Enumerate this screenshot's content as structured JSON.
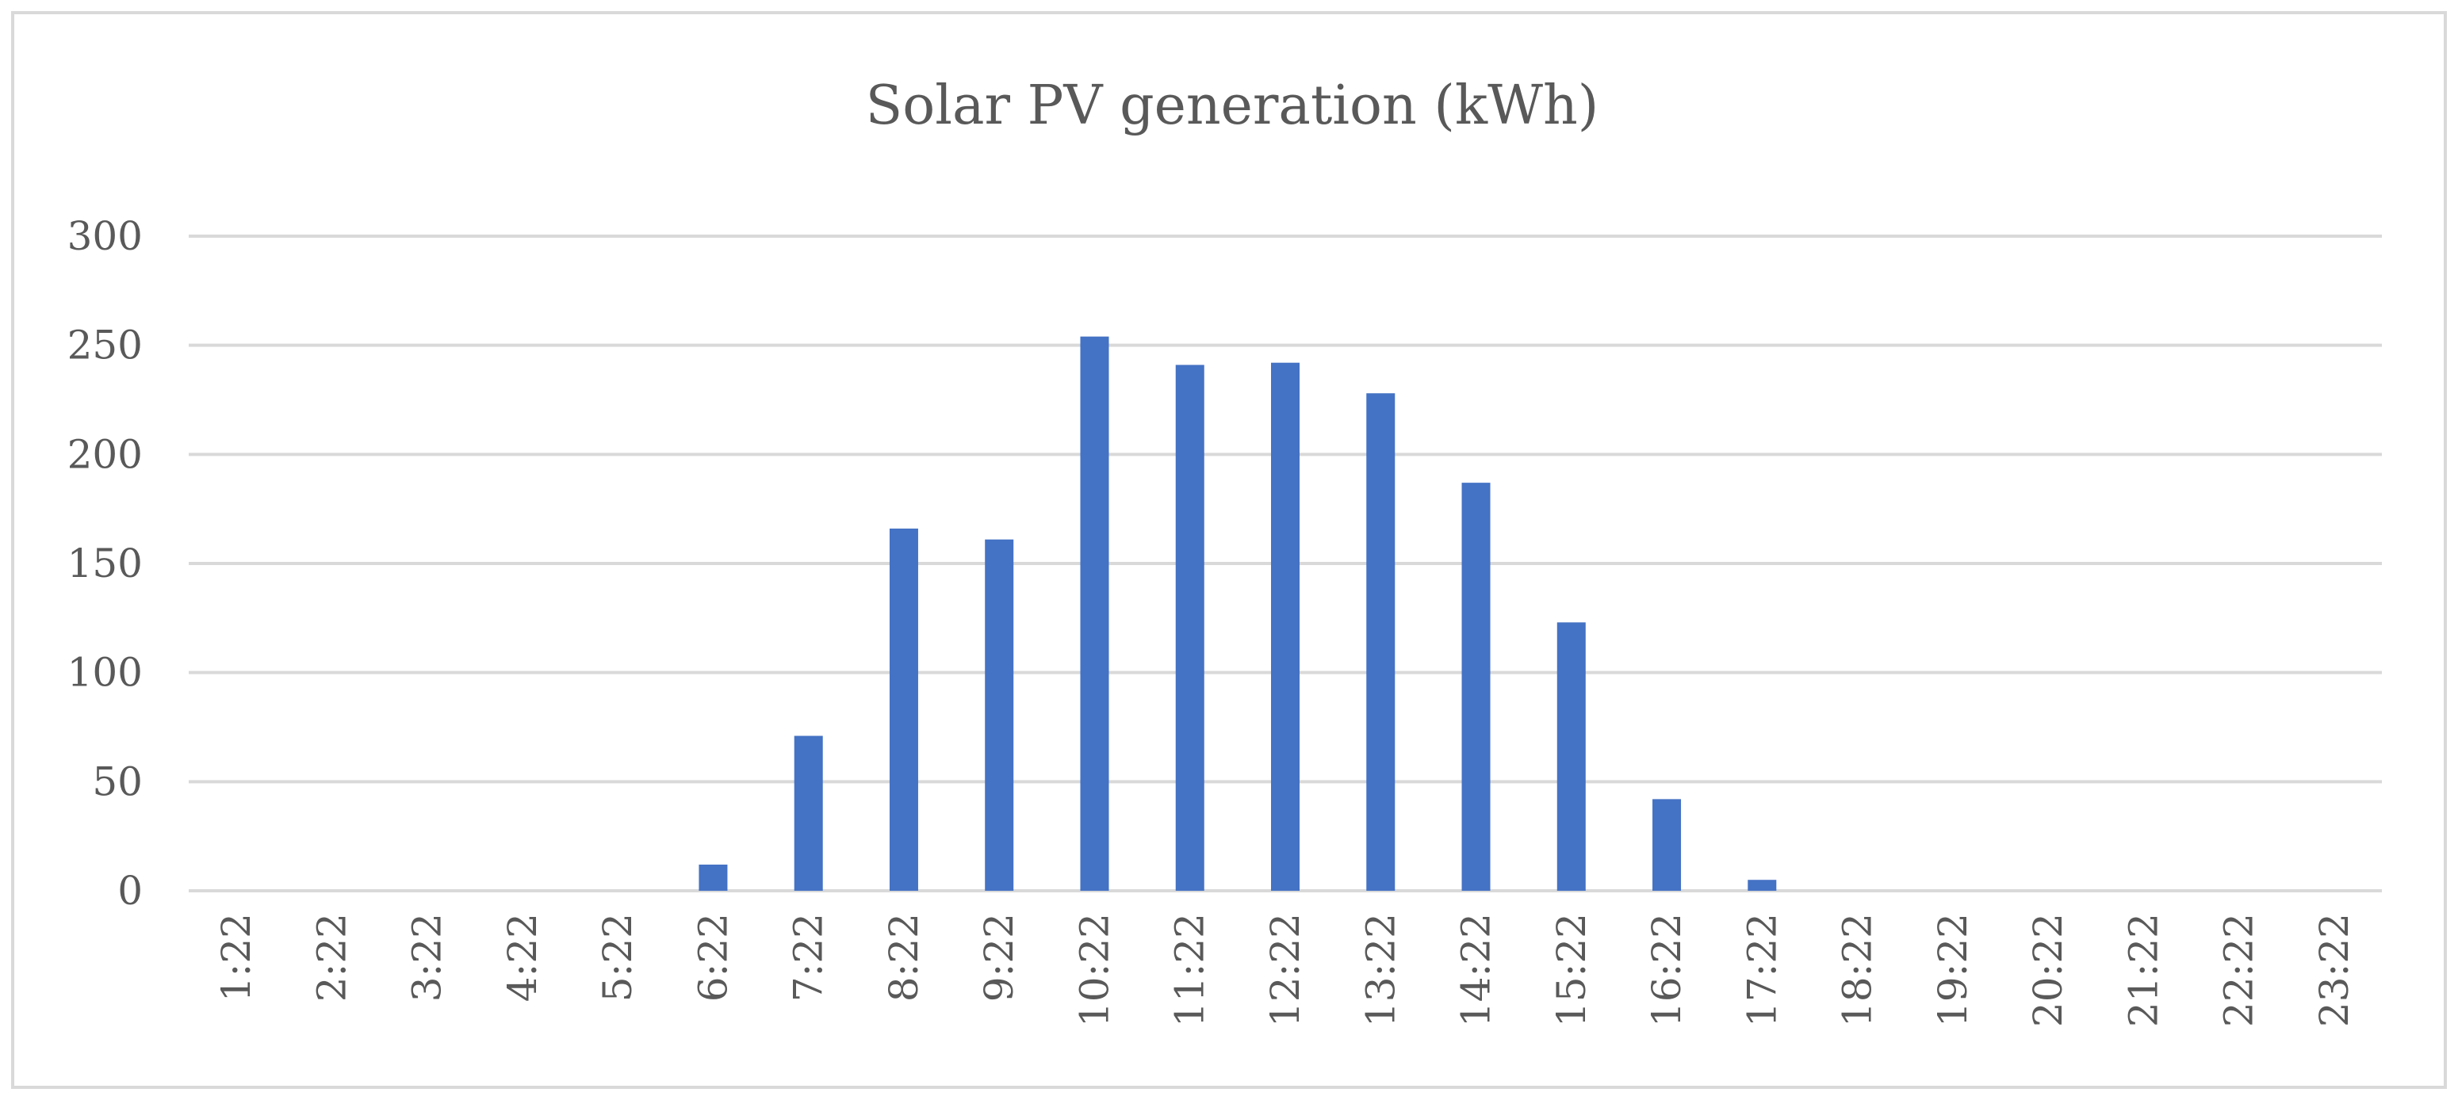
{
  "chart_data": {
    "type": "bar",
    "title": "Solar PV generation (kWh)",
    "xlabel": "",
    "ylabel": "",
    "ylim": [
      0,
      300
    ],
    "yticks": [
      0,
      50,
      100,
      150,
      200,
      250,
      300
    ],
    "grid": true,
    "legend": "none",
    "categories": [
      "1:22",
      "2:22",
      "3:22",
      "4:22",
      "5:22",
      "6:22",
      "7:22",
      "8:22",
      "9:22",
      "10:22",
      "11:22",
      "12:22",
      "13:22",
      "14:22",
      "15:22",
      "16:22",
      "17:22",
      "18:22",
      "19:22",
      "20:22",
      "21:22",
      "22:22",
      "23:22"
    ],
    "series": [
      {
        "name": "Solar PV generation (kWh)",
        "color": "#4472c4",
        "values": [
          0,
          0,
          0,
          0,
          0,
          12,
          71,
          166,
          161,
          254,
          241,
          242,
          228,
          187,
          123,
          42,
          5,
          0,
          0,
          0,
          0,
          0,
          0
        ]
      }
    ],
    "colors": {
      "grid": "#d9d9d9",
      "text": "#595959",
      "frame": "#d9d9d9"
    }
  }
}
